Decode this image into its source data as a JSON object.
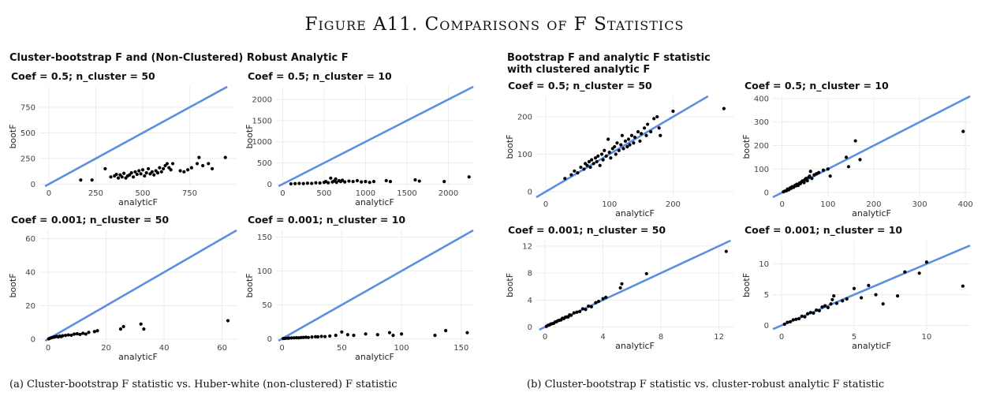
{
  "figure_title": "Figure A11. Comparisons of F Statistics",
  "left_group_title": "Cluster-bootstrap F and (Non-Clustered) Robust Analytic F",
  "right_group_title": "Bootstrap F and analytic F statistic\n with clustered analytic F",
  "caption_a": "(a) Cluster-bootstrap F statistic vs. Huber-white (non-clustered) F statistic",
  "caption_b": "(b) Cluster-bootstrap F statistic vs. cluster-robust analytic F statistic",
  "colors": {
    "line": "#5b8fe0",
    "points": "#000000"
  },
  "chart_data": [
    {
      "type": "scatter",
      "title": "Coef = 0.5; n_cluster = 50",
      "xlabel": "analyticF",
      "ylabel": "bootF",
      "xlim": [
        -50,
        1000
      ],
      "ylim": [
        -20,
        950
      ],
      "xticks": [
        0,
        250,
        500,
        750
      ],
      "yticks": [
        0,
        250,
        500,
        750
      ],
      "reference_line": "y = x",
      "points": [
        [
          170,
          40
        ],
        [
          230,
          40
        ],
        [
          300,
          150
        ],
        [
          330,
          70
        ],
        [
          350,
          80
        ],
        [
          360,
          95
        ],
        [
          370,
          60
        ],
        [
          380,
          90
        ],
        [
          390,
          70
        ],
        [
          400,
          105
        ],
        [
          410,
          60
        ],
        [
          420,
          80
        ],
        [
          430,
          90
        ],
        [
          440,
          110
        ],
        [
          450,
          70
        ],
        [
          460,
          120
        ],
        [
          470,
          95
        ],
        [
          480,
          130
        ],
        [
          490,
          100
        ],
        [
          500,
          140
        ],
        [
          510,
          80
        ],
        [
          520,
          110
        ],
        [
          530,
          150
        ],
        [
          540,
          100
        ],
        [
          550,
          120
        ],
        [
          560,
          90
        ],
        [
          570,
          130
        ],
        [
          580,
          110
        ],
        [
          590,
          160
        ],
        [
          600,
          120
        ],
        [
          610,
          150
        ],
        [
          620,
          180
        ],
        [
          630,
          200
        ],
        [
          640,
          160
        ],
        [
          650,
          140
        ],
        [
          660,
          200
        ],
        [
          700,
          130
        ],
        [
          720,
          120
        ],
        [
          740,
          140
        ],
        [
          760,
          160
        ],
        [
          790,
          200
        ],
        [
          800,
          260
        ],
        [
          820,
          180
        ],
        [
          850,
          200
        ],
        [
          870,
          150
        ],
        [
          940,
          260
        ]
      ]
    },
    {
      "type": "scatter",
      "title": "Coef = 0.5; n_cluster = 10",
      "xlabel": "analyticF",
      "ylabel": "bootF",
      "xlim": [
        -80,
        2300
      ],
      "ylim": [
        -50,
        2300
      ],
      "xticks": [
        0,
        500,
        1000,
        1500,
        2000
      ],
      "yticks": [
        0,
        500,
        1000,
        1500,
        2000
      ],
      "reference_line": "y = x",
      "points": [
        [
          100,
          5
        ],
        [
          150,
          10
        ],
        [
          200,
          15
        ],
        [
          250,
          10
        ],
        [
          300,
          20
        ],
        [
          350,
          15
        ],
        [
          400,
          30
        ],
        [
          450,
          25
        ],
        [
          500,
          40
        ],
        [
          520,
          60
        ],
        [
          550,
          30
        ],
        [
          600,
          50
        ],
        [
          620,
          70
        ],
        [
          650,
          40
        ],
        [
          680,
          80
        ],
        [
          700,
          60
        ],
        [
          720,
          90
        ],
        [
          750,
          50
        ],
        [
          800,
          70
        ],
        [
          850,
          60
        ],
        [
          900,
          80
        ],
        [
          950,
          50
        ],
        [
          1000,
          60
        ],
        [
          1050,
          40
        ],
        [
          1100,
          60
        ],
        [
          1250,
          80
        ],
        [
          1300,
          60
        ],
        [
          1600,
          100
        ],
        [
          1650,
          70
        ],
        [
          1950,
          60
        ],
        [
          2250,
          170
        ],
        [
          580,
          140
        ],
        [
          640,
          120
        ]
      ]
    },
    {
      "type": "scatter",
      "title": "Coef = 0.001; n_cluster = 50",
      "xlabel": "analyticF",
      "ylabel": "bootF",
      "xlim": [
        -3,
        65
      ],
      "ylim": [
        -1,
        65
      ],
      "xticks": [
        0,
        20,
        40,
        60
      ],
      "yticks": [
        0,
        20,
        40,
        60
      ],
      "reference_line": "y = x",
      "points": [
        [
          0.2,
          0.2
        ],
        [
          0.5,
          0.4
        ],
        [
          1,
          0.8
        ],
        [
          1.5,
          1
        ],
        [
          2,
          1.2
        ],
        [
          2.5,
          1.4
        ],
        [
          3,
          1.6
        ],
        [
          3.5,
          1.3
        ],
        [
          4,
          1.8
        ],
        [
          4.5,
          1.5
        ],
        [
          5,
          2
        ],
        [
          6,
          2.2
        ],
        [
          7,
          2.5
        ],
        [
          8,
          2.3
        ],
        [
          9,
          3
        ],
        [
          10,
          3.2
        ],
        [
          11,
          2.8
        ],
        [
          12,
          3.5
        ],
        [
          13,
          3
        ],
        [
          14,
          4
        ],
        [
          16,
          4.5
        ],
        [
          17,
          5
        ],
        [
          25,
          6
        ],
        [
          26,
          7.5
        ],
        [
          32,
          9
        ],
        [
          33,
          6
        ],
        [
          62,
          11
        ]
      ]
    },
    {
      "type": "scatter",
      "title": "Coef = 0.001; n_cluster = 10",
      "xlabel": "analyticF",
      "ylabel": "bootF",
      "xlim": [
        -5,
        160
      ],
      "ylim": [
        -3,
        160
      ],
      "xticks": [
        0,
        50,
        100,
        150
      ],
      "yticks": [
        0,
        50,
        100,
        150
      ],
      "reference_line": "y = x",
      "points": [
        [
          1,
          0.3
        ],
        [
          2,
          0.5
        ],
        [
          3,
          0.6
        ],
        [
          5,
          0.8
        ],
        [
          6,
          1
        ],
        [
          8,
          1.2
        ],
        [
          10,
          1.3
        ],
        [
          12,
          1.5
        ],
        [
          14,
          1.4
        ],
        [
          16,
          1.8
        ],
        [
          18,
          2
        ],
        [
          20,
          2.2
        ],
        [
          22,
          1.9
        ],
        [
          25,
          2.5
        ],
        [
          28,
          3
        ],
        [
          30,
          2.8
        ],
        [
          33,
          3.5
        ],
        [
          36,
          3.2
        ],
        [
          40,
          4
        ],
        [
          45,
          5
        ],
        [
          50,
          10
        ],
        [
          55,
          6
        ],
        [
          60,
          5
        ],
        [
          70,
          7
        ],
        [
          80,
          6
        ],
        [
          90,
          9
        ],
        [
          93,
          5
        ],
        [
          100,
          7
        ],
        [
          128,
          5
        ],
        [
          137,
          12
        ],
        [
          155,
          9
        ]
      ]
    },
    {
      "type": "scatter",
      "title": "Coef = 0.5; n_cluster = 50",
      "xlabel": "analyticF",
      "ylabel": "bootF",
      "xlim": [
        -15,
        295
      ],
      "ylim": [
        -15,
        255
      ],
      "xticks": [
        0,
        100,
        200
      ],
      "yticks": [
        0,
        100,
        200
      ],
      "reference_line": "y = x",
      "points": [
        [
          30,
          35
        ],
        [
          40,
          45
        ],
        [
          45,
          55
        ],
        [
          50,
          50
        ],
        [
          55,
          65
        ],
        [
          60,
          60
        ],
        [
          62,
          75
        ],
        [
          65,
          70
        ],
        [
          68,
          80
        ],
        [
          70,
          65
        ],
        [
          72,
          85
        ],
        [
          75,
          75
        ],
        [
          78,
          90
        ],
        [
          80,
          80
        ],
        [
          82,
          95
        ],
        [
          85,
          70
        ],
        [
          88,
          100
        ],
        [
          90,
          85
        ],
        [
          92,
          110
        ],
        [
          95,
          95
        ],
        [
          98,
          140
        ],
        [
          100,
          105
        ],
        [
          102,
          90
        ],
        [
          105,
          115
        ],
        [
          108,
          120
        ],
        [
          110,
          100
        ],
        [
          112,
          130
        ],
        [
          115,
          110
        ],
        [
          118,
          125
        ],
        [
          120,
          150
        ],
        [
          122,
          115
        ],
        [
          125,
          135
        ],
        [
          128,
          120
        ],
        [
          130,
          140
        ],
        [
          132,
          125
        ],
        [
          135,
          150
        ],
        [
          138,
          130
        ],
        [
          140,
          145
        ],
        [
          145,
          160
        ],
        [
          148,
          135
        ],
        [
          150,
          155
        ],
        [
          155,
          170
        ],
        [
          158,
          150
        ],
        [
          160,
          180
        ],
        [
          165,
          160
        ],
        [
          170,
          195
        ],
        [
          175,
          200
        ],
        [
          178,
          170
        ],
        [
          180,
          150
        ],
        [
          200,
          215
        ],
        [
          280,
          222
        ]
      ]
    },
    {
      "type": "scatter",
      "title": "Coef = 0.5; n_cluster = 10",
      "xlabel": "analyticF",
      "ylabel": "bootF",
      "xlim": [
        -20,
        410
      ],
      "ylim": [
        -20,
        410
      ],
      "xticks": [
        0,
        100,
        200,
        300,
        400
      ],
      "yticks": [
        0,
        100,
        200,
        300,
        400
      ],
      "reference_line": "y = x",
      "points": [
        [
          3,
          3
        ],
        [
          6,
          6
        ],
        [
          10,
          8
        ],
        [
          12,
          15
        ],
        [
          15,
          12
        ],
        [
          18,
          20
        ],
        [
          20,
          18
        ],
        [
          22,
          25
        ],
        [
          25,
          22
        ],
        [
          28,
          30
        ],
        [
          30,
          28
        ],
        [
          32,
          35
        ],
        [
          35,
          30
        ],
        [
          38,
          40
        ],
        [
          40,
          38
        ],
        [
          42,
          45
        ],
        [
          45,
          50
        ],
        [
          48,
          42
        ],
        [
          50,
          55
        ],
        [
          52,
          60
        ],
        [
          55,
          50
        ],
        [
          58,
          65
        ],
        [
          60,
          70
        ],
        [
          65,
          60
        ],
        [
          70,
          75
        ],
        [
          75,
          80
        ],
        [
          80,
          85
        ],
        [
          90,
          95
        ],
        [
          100,
          100
        ],
        [
          105,
          70
        ],
        [
          140,
          150
        ],
        [
          145,
          110
        ],
        [
          160,
          220
        ],
        [
          170,
          140
        ],
        [
          395,
          260
        ],
        [
          62,
          90
        ]
      ]
    },
    {
      "type": "scatter",
      "title": "Coef = 0.001; n_cluster = 50",
      "xlabel": "analyticF",
      "ylabel": "bootF",
      "xlim": [
        -0.6,
        13
      ],
      "ylim": [
        -0.4,
        12.8
      ],
      "xticks": [
        0,
        4,
        8,
        12
      ],
      "yticks": [
        0,
        4,
        8,
        12
      ],
      "reference_line": "y = x",
      "points": [
        [
          0.1,
          0.1
        ],
        [
          0.2,
          0.25
        ],
        [
          0.3,
          0.3
        ],
        [
          0.4,
          0.45
        ],
        [
          0.5,
          0.5
        ],
        [
          0.6,
          0.55
        ],
        [
          0.7,
          0.75
        ],
        [
          0.8,
          0.8
        ],
        [
          0.9,
          0.95
        ],
        [
          1,
          1
        ],
        [
          1.1,
          1.05
        ],
        [
          1.2,
          1.3
        ],
        [
          1.3,
          1.25
        ],
        [
          1.4,
          1.45
        ],
        [
          1.5,
          1.5
        ],
        [
          1.6,
          1.5
        ],
        [
          1.7,
          1.8
        ],
        [
          1.8,
          1.75
        ],
        [
          2,
          2.1
        ],
        [
          2.2,
          2.2
        ],
        [
          2.4,
          2.3
        ],
        [
          2.6,
          2.7
        ],
        [
          2.8,
          2.6
        ],
        [
          3,
          3.1
        ],
        [
          3.2,
          3
        ],
        [
          3.5,
          3.6
        ],
        [
          3.7,
          3.8
        ],
        [
          4,
          4.2
        ],
        [
          4.2,
          4.4
        ],
        [
          5.2,
          5.8
        ],
        [
          5.3,
          6.4
        ],
        [
          7,
          7.9
        ],
        [
          12.5,
          11.2
        ]
      ]
    },
    {
      "type": "scatter",
      "title": "Coef = 0.001; n_cluster = 10",
      "xlabel": "analyticF",
      "ylabel": "bootF",
      "xlim": [
        -0.6,
        13
      ],
      "ylim": [
        -0.7,
        13.8
      ],
      "xticks": [
        0,
        5,
        10
      ],
      "yticks": [
        0,
        5,
        10
      ],
      "reference_line": "y = x",
      "points": [
        [
          0.2,
          0.2
        ],
        [
          0.4,
          0.5
        ],
        [
          0.6,
          0.6
        ],
        [
          0.8,
          0.9
        ],
        [
          1,
          1
        ],
        [
          1.2,
          1.1
        ],
        [
          1.4,
          1.5
        ],
        [
          1.6,
          1.4
        ],
        [
          1.8,
          1.9
        ],
        [
          2,
          2.1
        ],
        [
          2.2,
          2
        ],
        [
          2.4,
          2.5
        ],
        [
          2.6,
          2.4
        ],
        [
          2.8,
          3
        ],
        [
          3,
          3.2
        ],
        [
          3.2,
          2.9
        ],
        [
          3.4,
          3.5
        ],
        [
          3.5,
          4.2
        ],
        [
          3.6,
          4.8
        ],
        [
          3.8,
          3.6
        ],
        [
          4.2,
          4
        ],
        [
          4.5,
          4.3
        ],
        [
          5,
          6
        ],
        [
          5.5,
          4.5
        ],
        [
          6,
          6.5
        ],
        [
          6.5,
          5
        ],
        [
          7,
          3.5
        ],
        [
          8,
          4.8
        ],
        [
          8.5,
          8.7
        ],
        [
          9.5,
          8.5
        ],
        [
          10,
          10.3
        ],
        [
          12.5,
          6.4
        ]
      ]
    }
  ]
}
